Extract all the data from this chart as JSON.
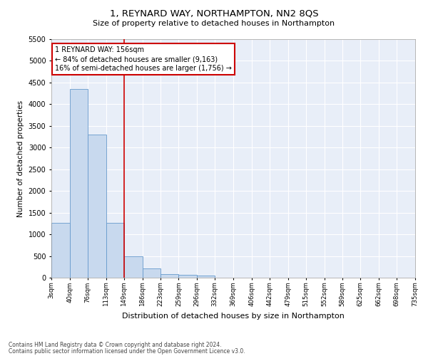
{
  "title": "1, REYNARD WAY, NORTHAMPTON, NN2 8QS",
  "subtitle": "Size of property relative to detached houses in Northampton",
  "xlabel": "Distribution of detached houses by size in Northampton",
  "ylabel": "Number of detached properties",
  "footnote1": "Contains HM Land Registry data © Crown copyright and database right 2024.",
  "footnote2": "Contains public sector information licensed under the Open Government Licence v3.0.",
  "annotation_title": "1 REYNARD WAY: 156sqm",
  "annotation_line1": "← 84% of detached houses are smaller (9,163)",
  "annotation_line2": "16% of semi-detached houses are larger (1,756) →",
  "property_size": 156,
  "bar_color": "#c8d9ee",
  "bar_edge_color": "#6699cc",
  "vline_color": "#cc0000",
  "annotation_box_color": "#cc0000",
  "fig_background": "#ffffff",
  "plot_background": "#e8eef8",
  "grid_color": "#ffffff",
  "bins": [
    3,
    40,
    76,
    113,
    149,
    186,
    223,
    259,
    296,
    332,
    369,
    406,
    442,
    479,
    515,
    552,
    589,
    625,
    662,
    698,
    735
  ],
  "bin_labels": [
    "3sqm",
    "40sqm",
    "76sqm",
    "113sqm",
    "149sqm",
    "186sqm",
    "223sqm",
    "259sqm",
    "296sqm",
    "332sqm",
    "369sqm",
    "406sqm",
    "442sqm",
    "479sqm",
    "515sqm",
    "552sqm",
    "589sqm",
    "625sqm",
    "662sqm",
    "698sqm",
    "735sqm"
  ],
  "bar_heights": [
    1260,
    4350,
    3300,
    1270,
    490,
    220,
    90,
    65,
    55,
    0,
    0,
    0,
    0,
    0,
    0,
    0,
    0,
    0,
    0,
    0
  ],
  "ylim": [
    0,
    5500
  ],
  "yticks": [
    0,
    500,
    1000,
    1500,
    2000,
    2500,
    3000,
    3500,
    4000,
    4500,
    5000,
    5500
  ]
}
